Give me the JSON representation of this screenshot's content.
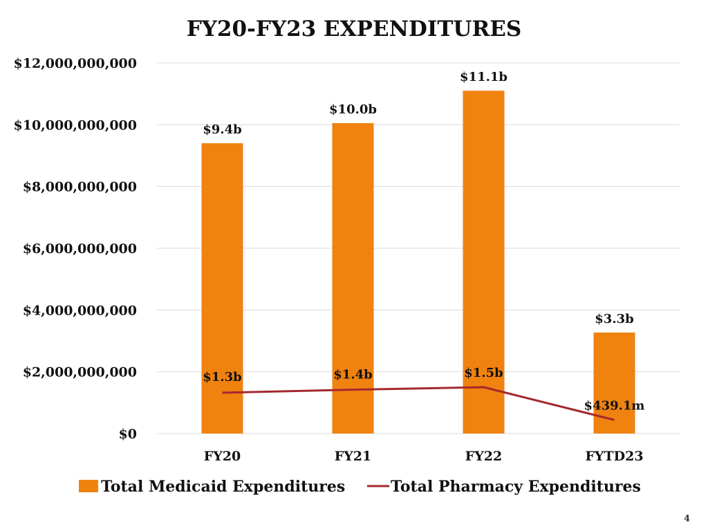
{
  "page": {
    "number": "4"
  },
  "colors": {
    "bar": "#f08210",
    "line": "#a3282d",
    "grid": "#d9d9d9"
  },
  "chart_data": {
    "type": "bar",
    "title": "FY20-FY23 EXPENDITURES",
    "xlabel": "",
    "ylabel": "",
    "ylim": [
      0,
      12000000000
    ],
    "yticks": [
      0,
      2000000000,
      4000000000,
      6000000000,
      8000000000,
      10000000000,
      12000000000
    ],
    "ytick_labels": [
      "$0",
      "$2,000,000,000",
      "$4,000,000,000",
      "$6,000,000,000",
      "$8,000,000,000",
      "$10,000,000,000",
      "$12,000,000,000"
    ],
    "grid": true,
    "legend_position": "bottom",
    "categories": [
      "FY20",
      "FY21",
      "FY22",
      "FYTD23"
    ],
    "series": [
      {
        "name": "Total Medicaid Expenditures",
        "type": "bar",
        "values": [
          9400000000,
          10050000000,
          11100000000,
          3270000000
        ],
        "labels": [
          "$9.4b",
          "$10.0b",
          "$11.1b",
          "$3.3b"
        ]
      },
      {
        "name": "Total Pharmacy Expenditures",
        "type": "line",
        "values": [
          1320000000,
          1420000000,
          1500000000,
          439100000
        ],
        "labels": [
          "$1.3b",
          "$1.4b",
          "$1.5b",
          "$439.1m"
        ]
      }
    ]
  }
}
